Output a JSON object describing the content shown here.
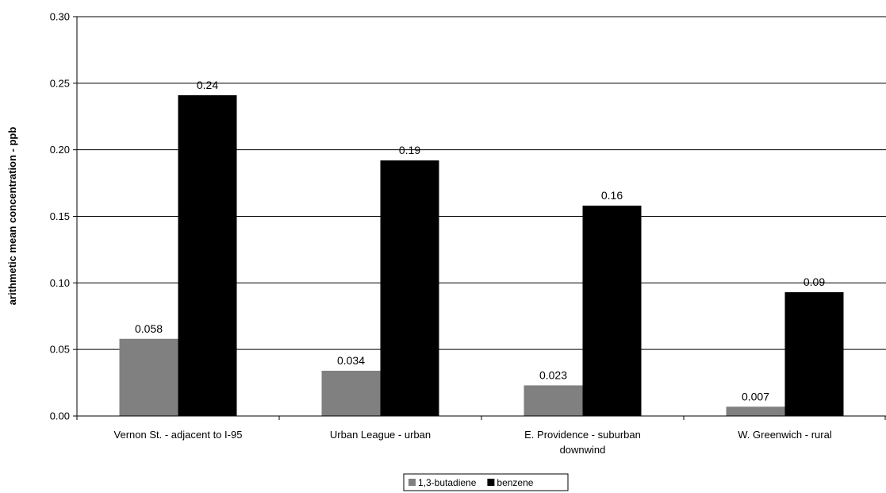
{
  "chart_data": {
    "type": "bar",
    "ylabel": "arithmetic mean concentration - ppb",
    "ylim": [
      0,
      0.3
    ],
    "yticks": [
      "0.00",
      "0.05",
      "0.10",
      "0.15",
      "0.20",
      "0.25",
      "0.30"
    ],
    "categories": [
      [
        "Vernon St. - adjacent to I-95"
      ],
      [
        "Urban League - urban"
      ],
      [
        "E. Providence - suburban",
        "downwind"
      ],
      [
        "W. Greenwich -   rural"
      ]
    ],
    "series": [
      {
        "name": "1,3-butadiene",
        "color": "#808080",
        "values": [
          0.058,
          0.034,
          0.023,
          0.007
        ],
        "labels": [
          "0.058",
          "0.034",
          "0.023",
          "0.007"
        ]
      },
      {
        "name": "benzene",
        "color": "#000000",
        "values": [
          0.241,
          0.192,
          0.158,
          0.093
        ],
        "labels": [
          "0.24",
          "0.19",
          "0.16",
          "0.09"
        ]
      }
    ],
    "grid": true,
    "legend_position": "bottom-center"
  }
}
